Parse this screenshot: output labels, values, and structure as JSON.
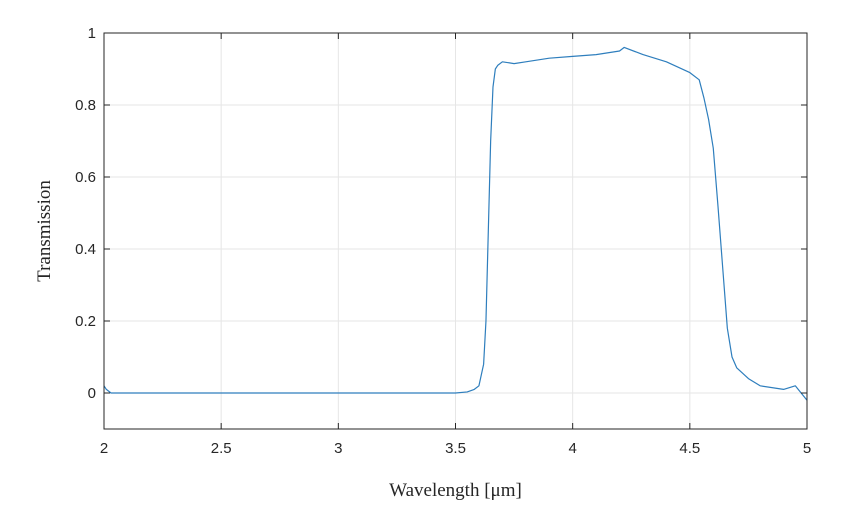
{
  "chart_data": {
    "type": "line",
    "title": "",
    "xlabel": "Wavelength [μm]",
    "ylabel": "Transmission",
    "xlim": [
      2,
      5
    ],
    "ylim": [
      -0.1,
      1
    ],
    "xticks": [
      2,
      2.5,
      3,
      3.5,
      4,
      4.5,
      5
    ],
    "xtick_labels": [
      "2",
      "2.5",
      "3",
      "3.5",
      "4",
      "4.5",
      "5"
    ],
    "yticks": [
      0,
      0.2,
      0.4,
      0.6,
      0.8,
      1
    ],
    "ytick_labels": [
      "0",
      "0.2",
      "0.4",
      "0.6",
      "0.8",
      "1"
    ],
    "grid": true,
    "legend": "none",
    "line_color": "#2e7ebd",
    "series": [
      {
        "x": [
          2.0,
          2.01,
          2.03,
          2.1,
          2.5,
          3.0,
          3.4,
          3.5,
          3.55,
          3.58,
          3.6,
          3.62,
          3.63,
          3.64,
          3.65,
          3.66,
          3.67,
          3.68,
          3.7,
          3.75,
          3.8,
          3.9,
          4.0,
          4.1,
          4.2,
          4.22,
          4.3,
          4.4,
          4.5,
          4.54,
          4.56,
          4.58,
          4.6,
          4.62,
          4.64,
          4.66,
          4.68,
          4.7,
          4.75,
          4.8,
          4.9,
          4.95,
          5.0
        ],
        "y": [
          0.02,
          0.01,
          0.0,
          0.0,
          0.0,
          0.0,
          0.0,
          0.0,
          0.003,
          0.01,
          0.02,
          0.08,
          0.2,
          0.45,
          0.7,
          0.85,
          0.9,
          0.91,
          0.92,
          0.915,
          0.92,
          0.93,
          0.935,
          0.94,
          0.95,
          0.96,
          0.94,
          0.92,
          0.89,
          0.87,
          0.82,
          0.76,
          0.68,
          0.52,
          0.35,
          0.18,
          0.1,
          0.07,
          0.04,
          0.02,
          0.01,
          0.02,
          -0.02
        ]
      }
    ]
  }
}
